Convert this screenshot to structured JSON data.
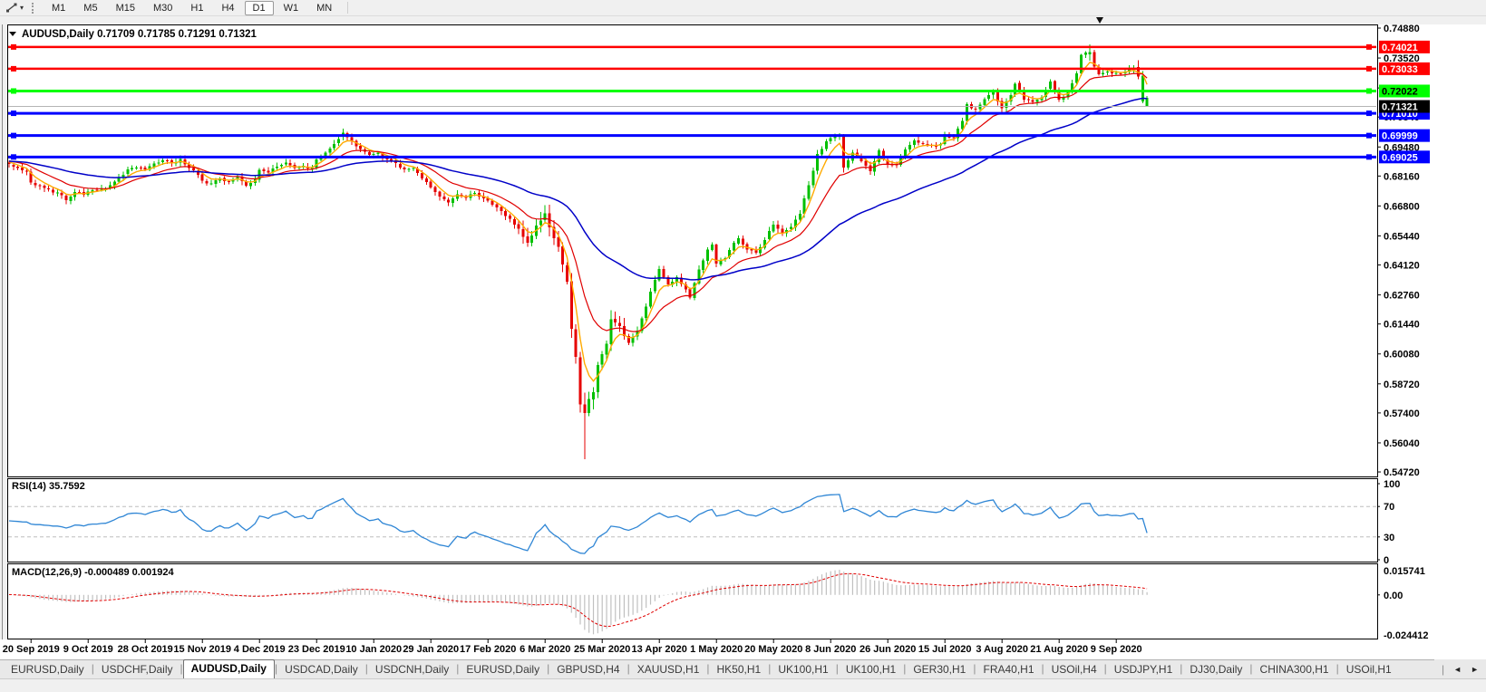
{
  "toolbar": {
    "timeframes": [
      "M1",
      "M5",
      "M15",
      "M30",
      "H1",
      "H4",
      "D1",
      "W1",
      "MN"
    ],
    "active_timeframe": "D1"
  },
  "chart": {
    "symbol": "AUDUSD",
    "timeframe": "Daily",
    "open": "0.71709",
    "high": "0.71785",
    "low": "0.71291",
    "close": "0.71321"
  },
  "indicators": {
    "rsi_label": "RSI(14) 35.7592",
    "macd_label": "MACD(12,26,9) -0.000489 0.001924"
  },
  "colors": {
    "up_candle": "#00C000",
    "down_candle": "#E60000",
    "ma_fast": "#FFAA00",
    "ma_mid": "#E00000",
    "ma_slow": "#0000C8",
    "line_red": "#FF0000",
    "line_green": "#00FF00",
    "line_blue": "#0000FF",
    "current_price_line": "#B4B4B4",
    "rsi_line": "#2F86D5",
    "rsi_levels": "#BDBDBD",
    "macd_histogram": "#C0C0C0",
    "macd_signal": "#E00000"
  },
  "tabs": {
    "items": [
      "EURUSD,Daily",
      "USDCHF,Daily",
      "AUDUSD,Daily",
      "USDCAD,Daily",
      "USDCNH,Daily",
      "EURUSD,Daily",
      "GBPUSD,H4",
      "XAUUSD,H1",
      "HK50,H1",
      "UK100,H1",
      "UK100,H1",
      "GER30,H1",
      "FRA40,H1",
      "USOil,H4",
      "USDJPY,H1",
      "DJ30,Daily",
      "CHINA300,H1",
      "USOil,H1"
    ],
    "active_index": 2
  },
  "chart_data": {
    "type": "candlestick",
    "symbol": "AUDUSD",
    "period": "Daily",
    "bars": 260,
    "price_ticks": [
      "0.74880",
      "0.73520",
      "0.72160",
      "0.70840",
      "0.69480",
      "0.68160",
      "0.66800",
      "0.65440",
      "0.64120",
      "0.62760",
      "0.61440",
      "0.60080",
      "0.58720",
      "0.57400",
      "0.56040",
      "0.54720"
    ],
    "time_labels": [
      "20 Sep 2019",
      "9 Oct 2019",
      "28 Oct 2019",
      "15 Nov 2019",
      "4 Dec 2019",
      "23 Dec 2019",
      "10 Jan 2020",
      "29 Jan 2020",
      "17 Feb 2020",
      "6 Mar 2020",
      "25 Mar 2020",
      "13 Apr 2020",
      "1 May 2020",
      "20 May 2020",
      "8 Jun 2020",
      "26 Jun 2020",
      "15 Jul 2020",
      "3 Aug 2020",
      "21 Aug 2020",
      "9 Sep 2020"
    ],
    "x_label_first_bar": 5,
    "x_label_step": 13,
    "close_anchors": [
      [
        0,
        0.687
      ],
      [
        2,
        0.6852
      ],
      [
        4,
        0.6838
      ],
      [
        5,
        0.6786
      ],
      [
        7,
        0.6772
      ],
      [
        9,
        0.6756
      ],
      [
        11,
        0.6742
      ],
      [
        13,
        0.6706
      ],
      [
        15,
        0.6744
      ],
      [
        17,
        0.6732
      ],
      [
        19,
        0.6752
      ],
      [
        21,
        0.6758
      ],
      [
        23,
        0.6774
      ],
      [
        25,
        0.6812
      ],
      [
        27,
        0.6846
      ],
      [
        29,
        0.6854
      ],
      [
        31,
        0.6846
      ],
      [
        33,
        0.6872
      ],
      [
        35,
        0.6888
      ],
      [
        37,
        0.6876
      ],
      [
        39,
        0.6894
      ],
      [
        41,
        0.6852
      ],
      [
        43,
        0.6822
      ],
      [
        44,
        0.6794
      ],
      [
        46,
        0.6782
      ],
      [
        48,
        0.6806
      ],
      [
        50,
        0.6792
      ],
      [
        52,
        0.6812
      ],
      [
        54,
        0.6772
      ],
      [
        56,
        0.6802
      ],
      [
        57,
        0.6844
      ],
      [
        59,
        0.6832
      ],
      [
        61,
        0.6858
      ],
      [
        63,
        0.6878
      ],
      [
        65,
        0.6852
      ],
      [
        67,
        0.6862
      ],
      [
        69,
        0.6852
      ],
      [
        70,
        0.6892
      ],
      [
        72,
        0.6922
      ],
      [
        74,
        0.6962
      ],
      [
        76,
        0.7012
      ],
      [
        78,
        0.6974
      ],
      [
        80,
        0.6938
      ],
      [
        82,
        0.6912
      ],
      [
        84,
        0.6922
      ],
      [
        86,
        0.6892
      ],
      [
        88,
        0.6874
      ],
      [
        90,
        0.6846
      ],
      [
        92,
        0.6852
      ],
      [
        94,
        0.6806
      ],
      [
        96,
        0.6764
      ],
      [
        98,
        0.6722
      ],
      [
        100,
        0.6696
      ],
      [
        102,
        0.6734
      ],
      [
        104,
        0.6716
      ],
      [
        106,
        0.674
      ],
      [
        108,
        0.6714
      ],
      [
        110,
        0.6686
      ],
      [
        112,
        0.6656
      ],
      [
        114,
        0.6622
      ],
      [
        116,
        0.6576
      ],
      [
        118,
        0.6512
      ],
      [
        120,
        0.6592
      ],
      [
        122,
        0.6646
      ],
      [
        123,
        0.6582
      ],
      [
        125,
        0.6494
      ],
      [
        127,
        0.6336
      ],
      [
        128,
        0.6122
      ],
      [
        129,
        0.5994
      ],
      [
        130,
        0.5778
      ],
      [
        131,
        0.574
      ],
      [
        132,
        0.5804
      ],
      [
        133,
        0.5834
      ],
      [
        134,
        0.5958
      ],
      [
        136,
        0.6054
      ],
      [
        137,
        0.6166
      ],
      [
        139,
        0.6134
      ],
      [
        141,
        0.6058
      ],
      [
        143,
        0.6114
      ],
      [
        145,
        0.6222
      ],
      [
        147,
        0.6344
      ],
      [
        148,
        0.6394
      ],
      [
        150,
        0.6324
      ],
      [
        152,
        0.6356
      ],
      [
        154,
        0.6302
      ],
      [
        155,
        0.6264
      ],
      [
        157,
        0.6392
      ],
      [
        159,
        0.6482
      ],
      [
        160,
        0.6504
      ],
      [
        161,
        0.6418
      ],
      [
        163,
        0.6444
      ],
      [
        165,
        0.6512
      ],
      [
        166,
        0.6534
      ],
      [
        168,
        0.6482
      ],
      [
        170,
        0.6468
      ],
      [
        172,
        0.6526
      ],
      [
        174,
        0.6596
      ],
      [
        176,
        0.6556
      ],
      [
        178,
        0.6586
      ],
      [
        180,
        0.6644
      ],
      [
        182,
        0.6774
      ],
      [
        184,
        0.6916
      ],
      [
        186,
        0.6974
      ],
      [
        188,
        0.6996
      ],
      [
        189,
        0.7002
      ],
      [
        190,
        0.6854
      ],
      [
        192,
        0.6922
      ],
      [
        194,
        0.6884
      ],
      [
        196,
        0.6838
      ],
      [
        198,
        0.6932
      ],
      [
        200,
        0.6866
      ],
      [
        202,
        0.6864
      ],
      [
        204,
        0.6936
      ],
      [
        206,
        0.6978
      ],
      [
        208,
        0.6964
      ],
      [
        210,
        0.6956
      ],
      [
        212,
        0.6962
      ],
      [
        213,
        0.7006
      ],
      [
        215,
        0.6988
      ],
      [
        217,
        0.7066
      ],
      [
        218,
        0.7142
      ],
      [
        220,
        0.7118
      ],
      [
        222,
        0.7166
      ],
      [
        224,
        0.7196
      ],
      [
        226,
        0.7124
      ],
      [
        228,
        0.7184
      ],
      [
        229,
        0.7236
      ],
      [
        231,
        0.7164
      ],
      [
        233,
        0.7152
      ],
      [
        235,
        0.7174
      ],
      [
        237,
        0.7246
      ],
      [
        239,
        0.7164
      ],
      [
        241,
        0.7196
      ],
      [
        243,
        0.7282
      ],
      [
        244,
        0.7366
      ],
      [
        246,
        0.7378
      ],
      [
        247,
        0.7314
      ],
      [
        248,
        0.7278
      ],
      [
        250,
        0.729
      ],
      [
        252,
        0.7284
      ],
      [
        254,
        0.729
      ],
      [
        256,
        0.7304
      ],
      [
        257,
        0.7268
      ],
      [
        258,
        0.7272
      ],
      [
        259,
        0.71321
      ]
    ],
    "ohlc_overrides": {
      "76": [
        0.6996,
        0.7032,
        0.6978,
        0.7012
      ],
      "131": [
        0.5778,
        0.5832,
        0.553,
        0.574
      ],
      "190": [
        0.7,
        0.7006,
        0.6832,
        0.6854
      ],
      "246": [
        0.7368,
        0.7413,
        0.734,
        0.7378
      ],
      "257": [
        0.7312,
        0.7341,
        0.7256,
        0.7268
      ],
      "258": [
        0.7154,
        0.7293,
        0.7146,
        0.7272
      ],
      "259": [
        0.71709,
        0.71785,
        0.71291,
        0.71321
      ]
    },
    "force_up_bars": [
      258,
      259
    ],
    "hlines": [
      {
        "price": 0.74021,
        "label": "0.74021",
        "color": "#FF0000",
        "text_color": "#FFFFFF",
        "width": 2.5
      },
      {
        "price": 0.73033,
        "label": "0.73033",
        "color": "#FF0000",
        "text_color": "#FFFFFF",
        "width": 2.5
      },
      {
        "price": 0.72022,
        "label": "0.72022",
        "color": "#00FF00",
        "text_color": "#000000",
        "width": 3
      },
      {
        "price": 0.7101,
        "label": "0.71010",
        "color": "#0000FF",
        "text_color": "#FFFFFF",
        "width": 3
      },
      {
        "price": 0.69999,
        "label": "0.69999",
        "color": "#0000FF",
        "text_color": "#FFFFFF",
        "width": 3
      },
      {
        "price": 0.69025,
        "label": "0.69025",
        "color": "#0000FF",
        "text_color": "#FFFFFF",
        "width": 3
      }
    ],
    "current_price": {
      "value": 0.71321,
      "label": "0.71321",
      "tag_bg": "#000000",
      "tag_fg": "#FFFFFF"
    },
    "moving_averages": [
      {
        "period": 5,
        "color": "#FFAA00"
      },
      {
        "period": 15,
        "color": "#E00000"
      },
      {
        "period": 50,
        "color": "#0000C8"
      }
    ],
    "rsi": {
      "period": 14,
      "current": 35.7592,
      "axis_labels": [
        "100",
        "70",
        "30",
        "0"
      ],
      "axis_values": [
        100,
        70,
        30,
        0
      ],
      "dashed_levels": [
        70,
        30
      ]
    },
    "macd": {
      "fast": 12,
      "slow": 26,
      "signal": 9,
      "current": -0.000489,
      "signal_current": 0.001924,
      "axis_top": "0.015741",
      "axis_zero": "0.00",
      "axis_bottom": "-0.024412",
      "axis_top_value": 0.015741,
      "axis_bottom_value": -0.024412
    }
  }
}
